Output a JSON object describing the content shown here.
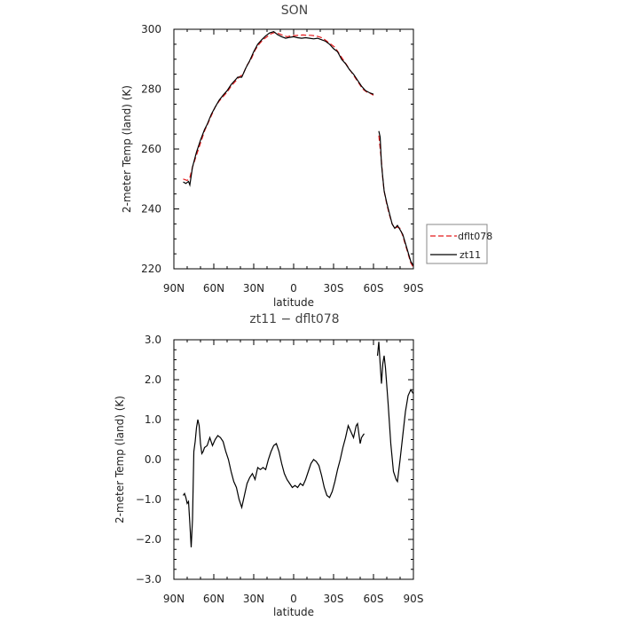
{
  "chart_data": [
    {
      "type": "line",
      "title": "SON",
      "xlabel": "latitude",
      "ylabel": "2-meter Temp (land) (K)",
      "xlim": [
        90,
        -90
      ],
      "ylim": [
        220,
        300
      ],
      "x_ticks": [
        90,
        60,
        30,
        0,
        -30,
        -60,
        -90
      ],
      "x_tick_labels": [
        "90N",
        "60N",
        "30N",
        "0",
        "30S",
        "60S",
        "90S"
      ],
      "y_ticks": [
        220,
        240,
        260,
        280,
        300
      ],
      "y_tick_labels": [
        "220",
        "240",
        "260",
        "280",
        "300"
      ],
      "legend_position": "right",
      "series": [
        {
          "name": "dflt078",
          "color": "#e41a1c",
          "dash": "6,3",
          "segments": [
            [
              [
                83,
                250
              ],
              [
                80,
                249.5
              ],
              [
                78,
                250.5
              ],
              [
                76,
                254
              ],
              [
                73,
                258
              ],
              [
                70,
                262
              ],
              [
                67,
                266
              ],
              [
                65,
                268
              ],
              [
                62,
                271
              ],
              [
                59,
                274
              ],
              [
                56,
                276
              ],
              [
                53,
                277.5
              ],
              [
                50,
                279
              ],
              [
                47,
                281
              ],
              [
                44,
                282.5
              ],
              [
                41,
                284
              ],
              [
                38,
                285
              ],
              [
                35,
                288
              ],
              [
                32,
                290
              ],
              [
                29,
                293
              ],
              [
                26,
                295
              ],
              [
                23,
                296.5
              ],
              [
                20,
                297.5
              ],
              [
                17,
                298.5
              ],
              [
                14,
                299
              ],
              [
                11,
                298.5
              ],
              [
                8,
                298
              ],
              [
                5,
                297.5
              ],
              [
                2,
                297.8
              ],
              [
                -1,
                297.9
              ],
              [
                -4,
                298
              ],
              [
                -7,
                298.1
              ],
              [
                -10,
                298
              ],
              [
                -13,
                298
              ],
              [
                -16,
                297.8
              ],
              [
                -19,
                297.5
              ],
              [
                -22,
                297
              ],
              [
                -25,
                296
              ],
              [
                -28,
                295
              ],
              [
                -31,
                294
              ],
              [
                -34,
                292
              ],
              [
                -37,
                290
              ],
              [
                -40,
                288
              ],
              [
                -43,
                286
              ],
              [
                -46,
                284
              ],
              [
                -49,
                282
              ],
              [
                -52,
                280
              ],
              [
                -55,
                279
              ],
              [
                -58,
                278.5
              ],
              [
                -60,
                278
              ]
            ],
            [
              [
                -64,
                264.5
              ],
              [
                -66,
                256
              ],
              [
                -67,
                250
              ],
              [
                -68,
                246
              ],
              [
                -70,
                241.5
              ],
              [
                -72,
                238
              ],
              [
                -74,
                235
              ],
              [
                -76,
                233.5
              ],
              [
                -78,
                234
              ],
              [
                -80,
                233.5
              ],
              [
                -82,
                231
              ],
              [
                -84,
                228
              ],
              [
                -86,
                225
              ],
              [
                -88,
                222
              ],
              [
                -90,
                220.5
              ]
            ]
          ]
        },
        {
          "name": "zt11",
          "color": "#000000",
          "dash": "",
          "segments": [
            [
              [
                83,
                249
              ],
              [
                81,
                248.5
              ],
              [
                79,
                249.2
              ],
              [
                78,
                248
              ],
              [
                76,
                254
              ],
              [
                73,
                259
              ],
              [
                70,
                263
              ],
              [
                67,
                266.5
              ],
              [
                65,
                268.2
              ],
              [
                62,
                271.5
              ],
              [
                59,
                274
              ],
              [
                56,
                276.3
              ],
              [
                53,
                278
              ],
              [
                50,
                279.5
              ],
              [
                47,
                281.5
              ],
              [
                44,
                283
              ],
              [
                42,
                284
              ],
              [
                39,
                284
              ],
              [
                36,
                287
              ],
              [
                33,
                289.5
              ],
              [
                30,
                292.5
              ],
              [
                27,
                295
              ],
              [
                24,
                296.5
              ],
              [
                21,
                297.8
              ],
              [
                18,
                298.8
              ],
              [
                15,
                299.2
              ],
              [
                12,
                298.2
              ],
              [
                9,
                297.5
              ],
              [
                6,
                297
              ],
              [
                3,
                297.3
              ],
              [
                0,
                297.5
              ],
              [
                -3,
                297.2
              ],
              [
                -6,
                297
              ],
              [
                -9,
                297.2
              ],
              [
                -12,
                297
              ],
              [
                -15,
                296.8
              ],
              [
                -18,
                297
              ],
              [
                -21,
                296.5
              ],
              [
                -24,
                296
              ],
              [
                -27,
                295
              ],
              [
                -30,
                293.5
              ],
              [
                -33,
                292.5
              ],
              [
                -36,
                290
              ],
              [
                -39,
                288.5
              ],
              [
                -42,
                286.5
              ],
              [
                -45,
                285
              ],
              [
                -48,
                283
              ],
              [
                -51,
                281
              ],
              [
                -54,
                279.5
              ],
              [
                -57,
                278.8
              ],
              [
                -60,
                278.3
              ]
            ],
            [
              [
                -64,
                266
              ],
              [
                -65,
                264
              ],
              [
                -66,
                255
              ],
              [
                -68,
                246
              ],
              [
                -70,
                242
              ],
              [
                -72,
                238.5
              ],
              [
                -74,
                235
              ],
              [
                -76,
                233.5
              ],
              [
                -78,
                234.5
              ],
              [
                -80,
                233
              ],
              [
                -82,
                231.5
              ],
              [
                -84,
                228.5
              ],
              [
                -86,
                225.5
              ],
              [
                -88,
                222.5
              ],
              [
                -90,
                221
              ]
            ]
          ]
        }
      ]
    },
    {
      "type": "line",
      "title": "zt11 − dflt078",
      "xlabel": "latitude",
      "ylabel": "2-meter Temp (land) (K)",
      "xlim": [
        90,
        -90
      ],
      "ylim": [
        -3,
        3
      ],
      "x_ticks": [
        90,
        60,
        30,
        0,
        -30,
        -60,
        -90
      ],
      "x_tick_labels": [
        "90N",
        "60N",
        "30N",
        "0",
        "30S",
        "60S",
        "90S"
      ],
      "y_ticks": [
        -3,
        -2,
        -1,
        0,
        1,
        2,
        3
      ],
      "y_tick_labels": [
        "−3.0",
        "−2.0",
        "−1.0",
        "0.0",
        "1.0",
        "2.0",
        "3.0"
      ],
      "series": [
        {
          "name": "zt11 − dflt078",
          "color": "#000000",
          "dash": "",
          "segments": [
            [
              [
                83,
                -0.9
              ],
              [
                82,
                -0.85
              ],
              [
                81,
                -0.95
              ],
              [
                80,
                -1.1
              ],
              [
                79,
                -1.05
              ],
              [
                78,
                -1.6
              ],
              [
                77,
                -2.2
              ],
              [
                76,
                -1.5
              ],
              [
                75,
                0.2
              ],
              [
                74,
                0.45
              ],
              [
                73,
                0.8
              ],
              [
                72,
                1.0
              ],
              [
                71,
                0.85
              ],
              [
                70,
                0.4
              ],
              [
                69,
                0.15
              ],
              [
                68,
                0.2
              ],
              [
                67,
                0.3
              ],
              [
                65,
                0.35
              ],
              [
                63,
                0.55
              ],
              [
                61,
                0.35
              ],
              [
                59,
                0.5
              ],
              [
                57,
                0.6
              ],
              [
                55,
                0.55
              ],
              [
                53,
                0.45
              ],
              [
                51,
                0.2
              ],
              [
                49,
                0.0
              ],
              [
                47,
                -0.3
              ],
              [
                45,
                -0.55
              ],
              [
                43,
                -0.7
              ],
              [
                41,
                -1.0
              ],
              [
                39,
                -1.2
              ],
              [
                37,
                -0.9
              ],
              [
                35,
                -0.6
              ],
              [
                33,
                -0.45
              ],
              [
                31,
                -0.35
              ],
              [
                29,
                -0.5
              ],
              [
                27,
                -0.2
              ],
              [
                25,
                -0.25
              ],
              [
                23,
                -0.2
              ],
              [
                21,
                -0.25
              ],
              [
                19,
                0.0
              ],
              [
                17,
                0.2
              ],
              [
                15,
                0.35
              ],
              [
                13,
                0.4
              ],
              [
                11,
                0.2
              ],
              [
                9,
                -0.1
              ],
              [
                7,
                -0.35
              ],
              [
                5,
                -0.5
              ],
              [
                3,
                -0.6
              ],
              [
                1,
                -0.7
              ],
              [
                -1,
                -0.65
              ],
              [
                -3,
                -0.7
              ],
              [
                -5,
                -0.6
              ],
              [
                -7,
                -0.65
              ],
              [
                -9,
                -0.5
              ],
              [
                -11,
                -0.3
              ],
              [
                -13,
                -0.1
              ],
              [
                -15,
                0.0
              ],
              [
                -17,
                -0.05
              ],
              [
                -19,
                -0.15
              ],
              [
                -21,
                -0.4
              ],
              [
                -23,
                -0.7
              ],
              [
                -25,
                -0.9
              ],
              [
                -27,
                -0.95
              ],
              [
                -29,
                -0.8
              ],
              [
                -31,
                -0.55
              ],
              [
                -33,
                -0.25
              ],
              [
                -35,
                0.0
              ],
              [
                -37,
                0.3
              ],
              [
                -39,
                0.55
              ],
              [
                -41,
                0.85
              ],
              [
                -43,
                0.7
              ],
              [
                -45,
                0.55
              ],
              [
                -47,
                0.85
              ],
              [
                -48,
                0.9
              ],
              [
                -49,
                0.65
              ],
              [
                -50,
                0.4
              ],
              [
                -51,
                0.55
              ],
              [
                -52,
                0.6
              ],
              [
                -53,
                0.65
              ]
            ],
            [
              [
                -63,
                2.6
              ],
              [
                -64,
                2.95
              ],
              [
                -65,
                2.4
              ],
              [
                -66,
                1.9
              ],
              [
                -67,
                2.4
              ],
              [
                -68,
                2.6
              ],
              [
                -69,
                2.3
              ],
              [
                -71,
                1.4
              ],
              [
                -73,
                0.4
              ],
              [
                -75,
                -0.3
              ],
              [
                -77,
                -0.5
              ],
              [
                -78,
                -0.55
              ],
              [
                -80,
                0.0
              ],
              [
                -82,
                0.6
              ],
              [
                -84,
                1.2
              ],
              [
                -86,
                1.6
              ],
              [
                -88,
                1.75
              ],
              [
                -90,
                1.65
              ]
            ]
          ]
        }
      ]
    }
  ]
}
